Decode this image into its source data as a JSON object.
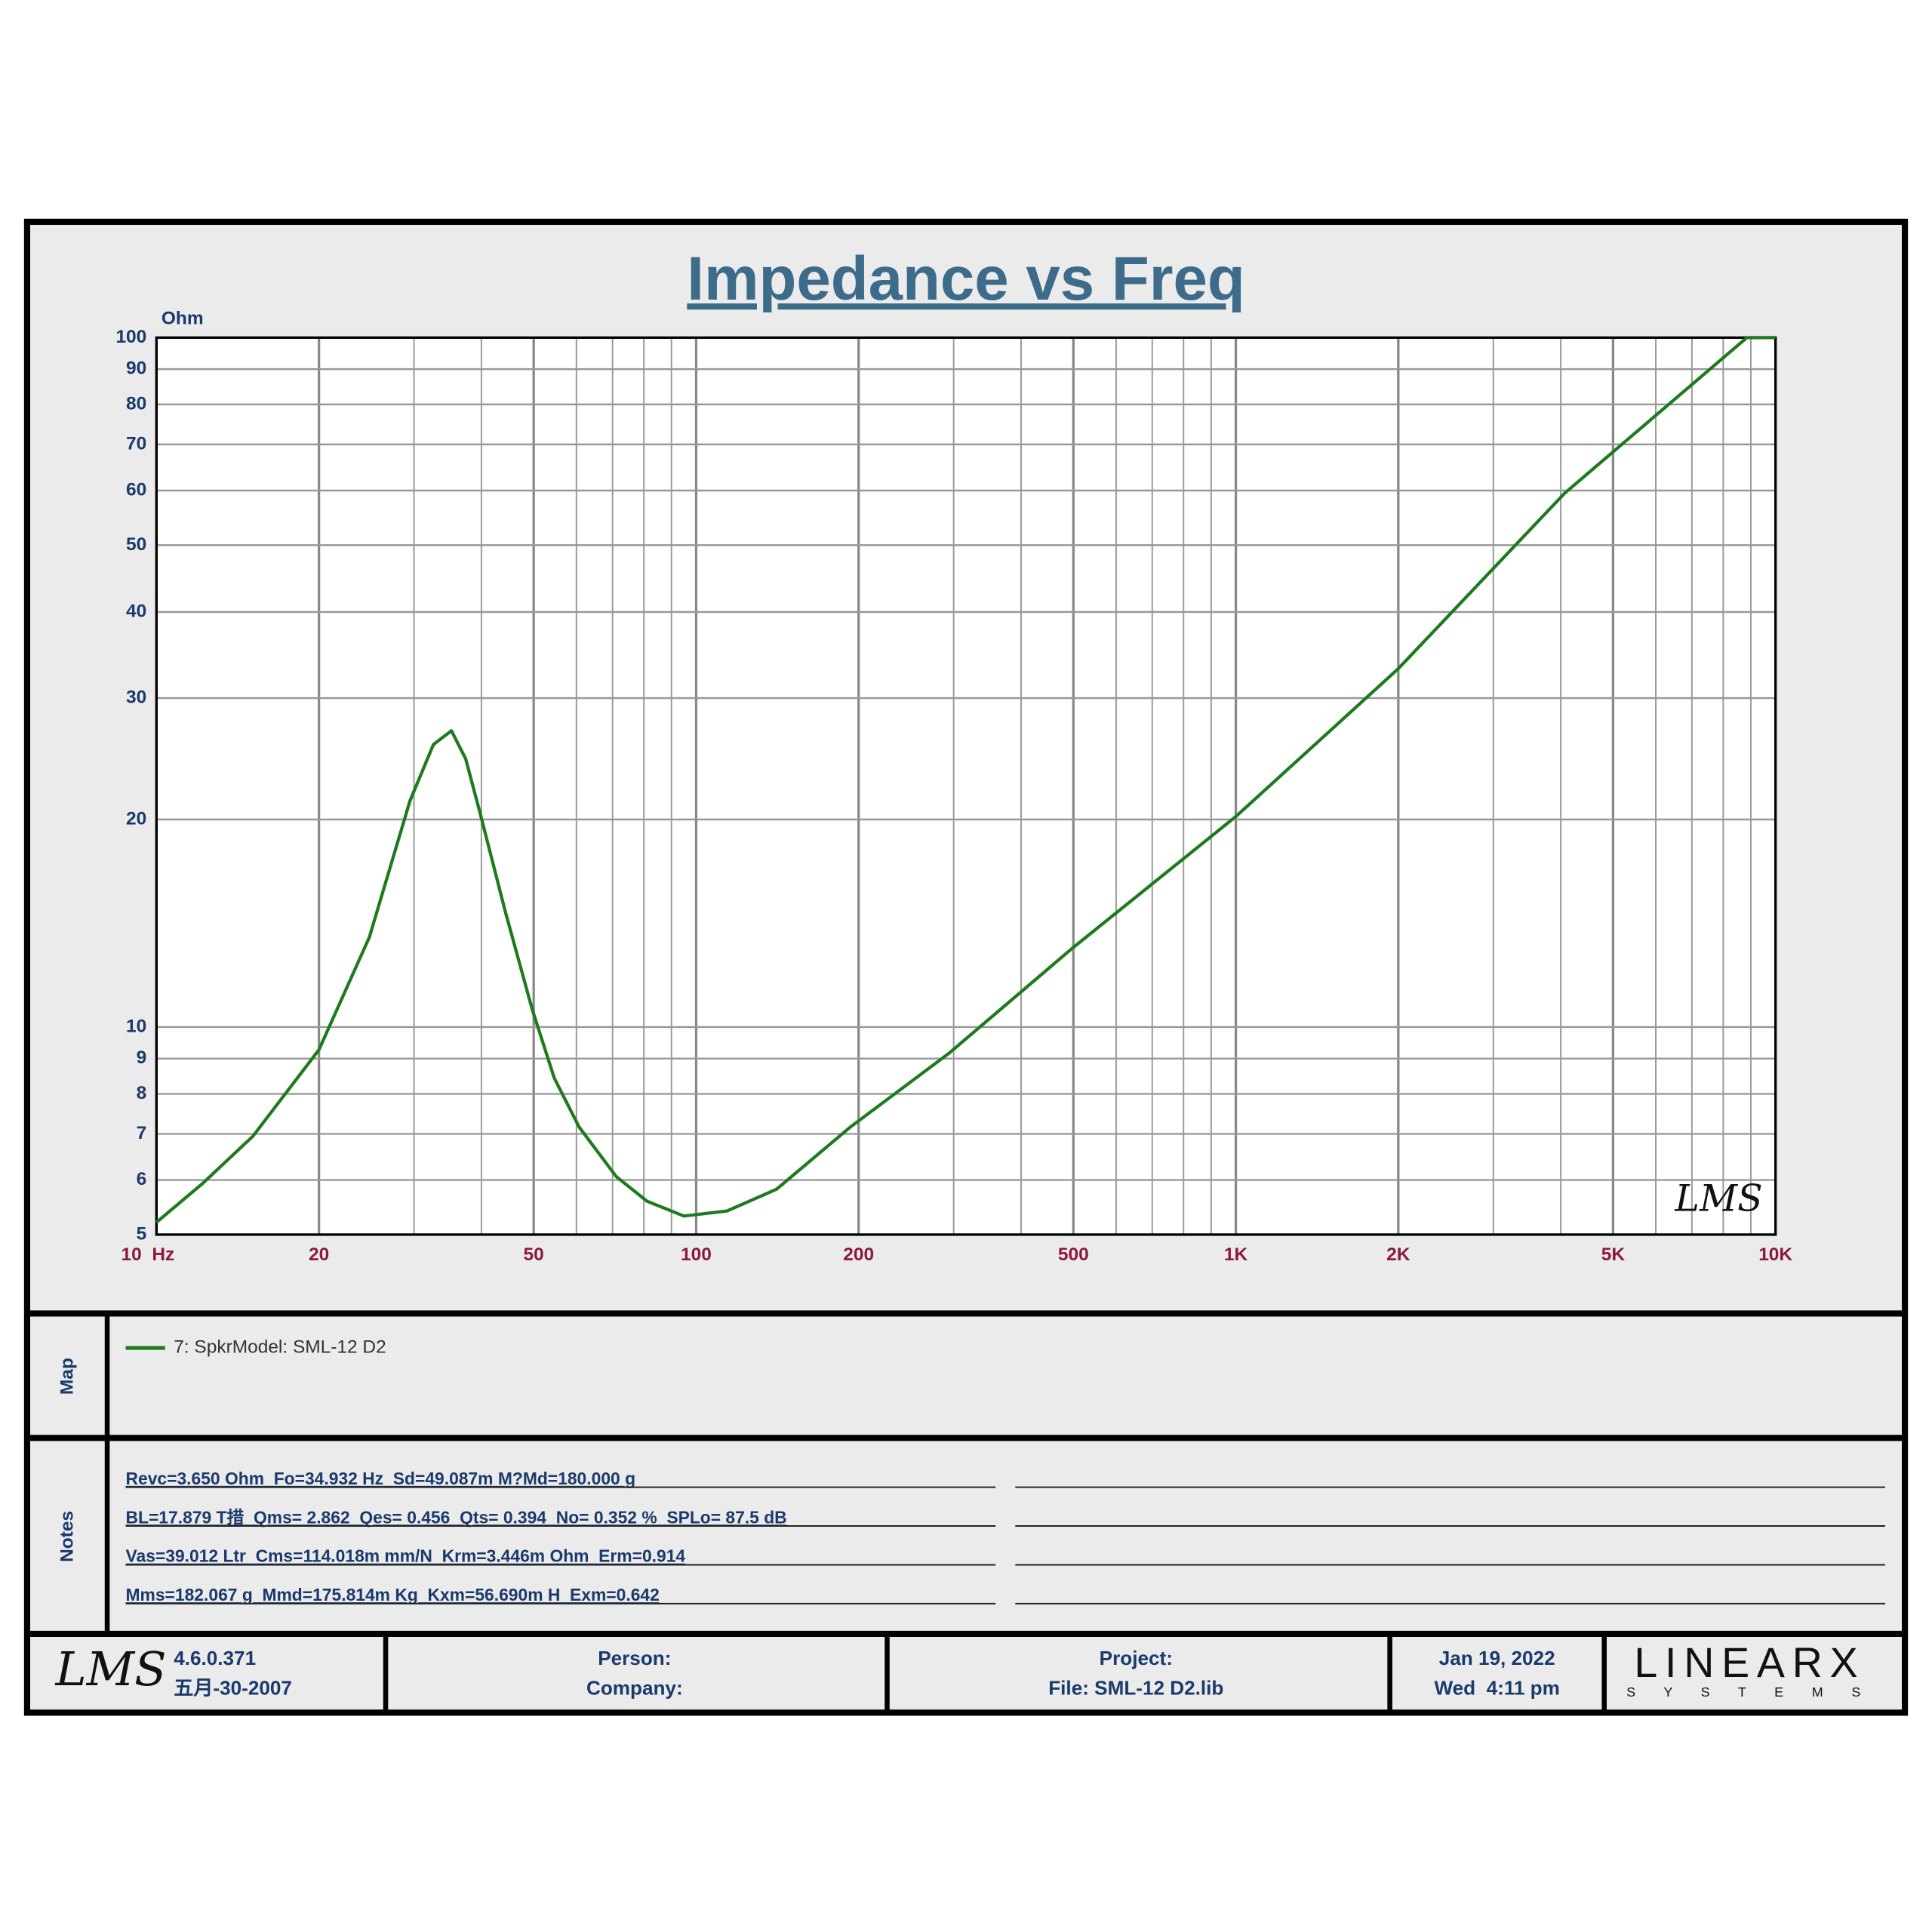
{
  "chart_data": {
    "type": "line",
    "title": "Impedance vs Freq",
    "y_label": "Ohm",
    "x": [
      10,
      12.2,
      15.1,
      20,
      24.8,
      29.5,
      32.6,
      35.2,
      37.4,
      39.8,
      44.3,
      49.7,
      54.6,
      60.7,
      71.1,
      81.1,
      94.9,
      114,
      141,
      193,
      294,
      497,
      1000,
      2000,
      4070,
      8850,
      10000
    ],
    "series": [
      {
        "name": "7: SpkrModel: SML-12 D2",
        "color": "#1e7a1e",
        "values": [
          5.21,
          5.94,
          6.95,
          9.27,
          13.5,
          21.3,
          25.7,
          26.9,
          24.5,
          20.4,
          14.7,
          10.6,
          8.43,
          7.16,
          6.07,
          5.59,
          5.32,
          5.41,
          5.82,
          7.16,
          9.16,
          13.0,
          20.2,
          33.1,
          59.5,
          100,
          100
        ]
      }
    ],
    "xlim": [
      10,
      10000
    ],
    "ylim": [
      5,
      100
    ],
    "log_x": true,
    "log_y": true,
    "grid": true,
    "xticks": [
      {
        "value": 10,
        "label": "10  Hz"
      },
      20,
      50,
      100,
      200,
      500,
      {
        "value": 1000,
        "label": "1K"
      },
      {
        "value": 2000,
        "label": "2K"
      },
      {
        "value": 5000,
        "label": "5K"
      },
      {
        "value": 10000,
        "label": "10K"
      }
    ],
    "yticks": [
      5,
      6,
      7,
      8,
      9,
      10,
      20,
      30,
      40,
      50,
      60,
      70,
      80,
      90,
      100
    ],
    "x_grid": [
      30,
      40,
      60,
      70,
      80,
      90,
      300,
      400,
      600,
      700,
      800,
      900,
      3000,
      4000,
      6000,
      7000,
      8000,
      9000
    ],
    "watermark": "LMS"
  },
  "map": {
    "label": "Map"
  },
  "notes": {
    "label": "Notes",
    "lines": [
      "Revc=3.650 Ohm  Fo=34.932 Hz  Sd=49.087m M?Md=180.000 g",
      "BL=17.879 T措  Qms= 2.862  Qes= 0.456  Qts= 0.394  No= 0.352 %  SPLo= 87.5 dB",
      "Vas=39.012 Ltr  Cms=114.018m mm/N  Krm=3.446m Ohm  Erm=0.914",
      "Mms=182.067 g  Mmd=175.814m Kg  Kxm=56.690m H  Exm=0.642"
    ]
  },
  "footer": {
    "logo": "LMS",
    "version": "4.6.0.371",
    "build_date": "五月-30-2007",
    "person": "Person:",
    "company": "Company:",
    "project": "Project:",
    "file": "File: SML-12 D2.lib",
    "date": "Jan 19, 2022",
    "time": "Wed  4:11 pm",
    "brand": "LINEARX",
    "brand_sub": "S Y S T E M S"
  }
}
